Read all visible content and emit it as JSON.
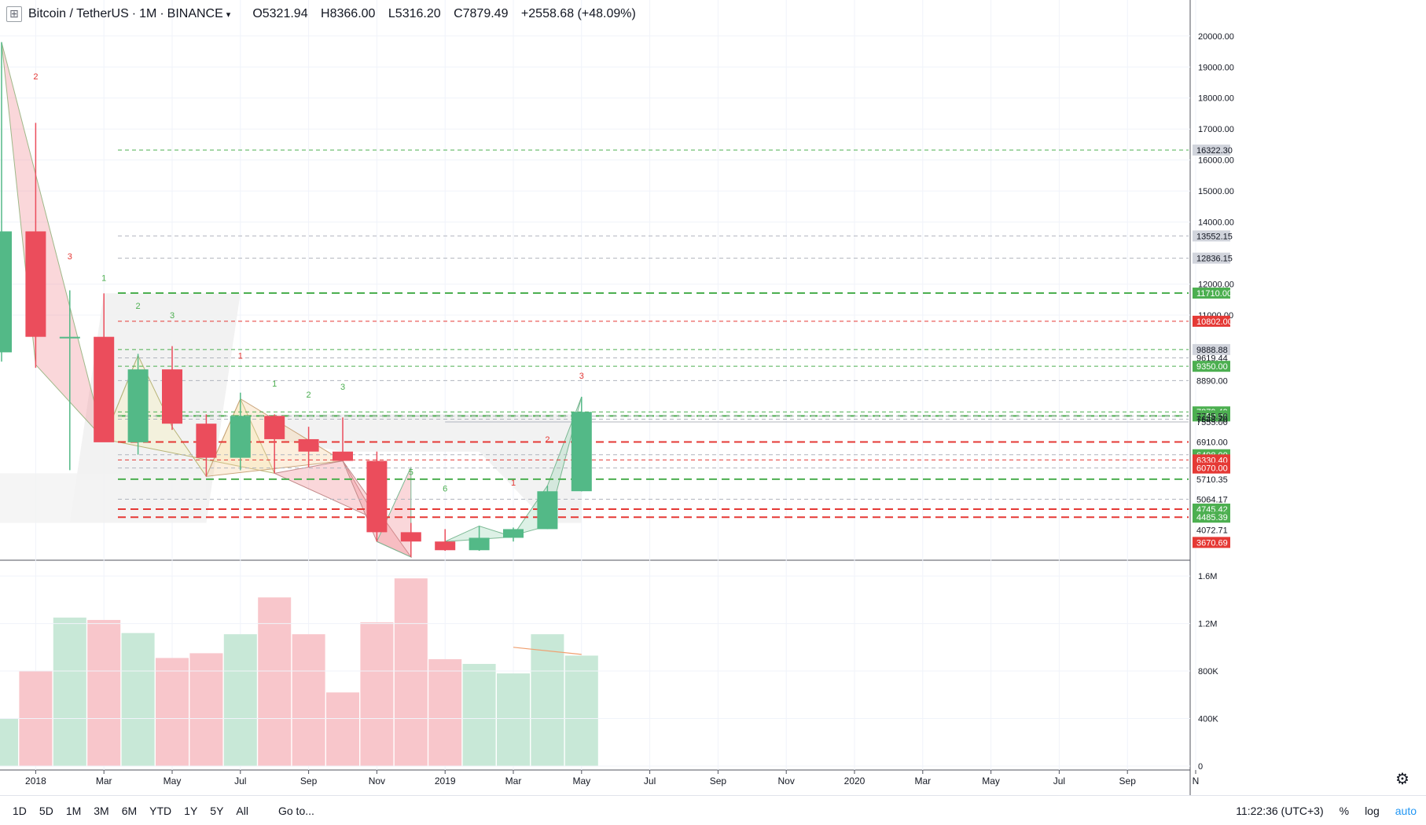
{
  "header": {
    "symbol": "Bitcoin / TetherUS",
    "interval": "1M",
    "exchange": "BINANCE",
    "open": "O5321.94",
    "high": "H8366.00",
    "low": "L5316.20",
    "close": "C7879.49",
    "change": "+2558.68 (+48.09%)"
  },
  "colors": {
    "up": "#53b987",
    "down": "#eb4d5c",
    "up_volume": "#c8e8d7",
    "down_volume": "#f8c6cb",
    "level_green": "#4caf50",
    "level_red": "#e53935",
    "level_gray": "#b0b4bd"
  },
  "chart_data": {
    "type": "candlestick",
    "interval": "1M",
    "price_axis": {
      "range": [
        3300,
        20400
      ],
      "ticks": [
        "20000.00",
        "19000.00",
        "18000.00",
        "17000.00",
        "16000.00",
        "15000.00",
        "14000.00",
        "12000.00",
        "11000.00"
      ]
    },
    "volume_axis": {
      "range": [
        0,
        1700000
      ],
      "ticks": [
        {
          "v": 1600000,
          "label": "1.6M"
        },
        {
          "v": 1200000,
          "label": "1.2M"
        },
        {
          "v": 800000,
          "label": "800K"
        },
        {
          "v": 400000,
          "label": "400K"
        },
        {
          "v": 0,
          "label": "0"
        }
      ]
    },
    "candles": [
      {
        "date": "2017-12",
        "open": 9800,
        "high": 19800,
        "low": 9500,
        "close": 13700,
        "volume": 400000
      },
      {
        "date": "2018-01",
        "open": 13700,
        "high": 17200,
        "low": 9300,
        "close": 10300,
        "volume": 800000
      },
      {
        "date": "2018-02",
        "open": 10300,
        "high": 11800,
        "low": 6000,
        "close": 10300,
        "volume": 1250000
      },
      {
        "date": "2018-03",
        "open": 10300,
        "high": 11700,
        "low": 7000,
        "close": 6900,
        "volume": 1230000
      },
      {
        "date": "2018-04",
        "open": 6900,
        "high": 9750,
        "low": 6500,
        "close": 9250,
        "volume": 1120000
      },
      {
        "date": "2018-05",
        "open": 9250,
        "high": 10000,
        "low": 7300,
        "close": 7500,
        "volume": 910000
      },
      {
        "date": "2018-06",
        "open": 7500,
        "high": 7800,
        "low": 5800,
        "close": 6400,
        "volume": 950000
      },
      {
        "date": "2018-07",
        "open": 6400,
        "high": 8500,
        "low": 6000,
        "close": 7750,
        "volume": 1110000
      },
      {
        "date": "2018-08",
        "open": 7750,
        "high": 7800,
        "low": 5900,
        "close": 7000,
        "volume": 1420000
      },
      {
        "date": "2018-09",
        "open": 7000,
        "high": 7400,
        "low": 6100,
        "close": 6600,
        "volume": 1110000
      },
      {
        "date": "2018-10",
        "open": 6600,
        "high": 7700,
        "low": 6300,
        "close": 6300,
        "volume": 620000
      },
      {
        "date": "2018-11",
        "open": 6300,
        "high": 6600,
        "low": 3700,
        "close": 4000,
        "volume": 1210000
      },
      {
        "date": "2018-12",
        "open": 4000,
        "high": 4300,
        "low": 3200,
        "close": 3700,
        "volume": 1580000
      },
      {
        "date": "2019-01",
        "open": 3700,
        "high": 4100,
        "low": 3400,
        "close": 3420,
        "volume": 900000
      },
      {
        "date": "2019-02",
        "open": 3420,
        "high": 4200,
        "low": 3400,
        "close": 3820,
        "volume": 860000
      },
      {
        "date": "2019-03",
        "open": 3820,
        "high": 4150,
        "low": 3700,
        "close": 4100,
        "volume": 780000
      },
      {
        "date": "2019-04",
        "open": 4100,
        "high": 5500,
        "low": 4100,
        "close": 5320,
        "volume": 1110000
      },
      {
        "date": "2019-05",
        "open": 5321.94,
        "high": 8366,
        "low": 5316.2,
        "close": 7879.49,
        "volume": 930000
      }
    ],
    "levels": [
      {
        "price": 16322.3,
        "label": "16322.30",
        "color": "green",
        "style": "dashed",
        "badge": "gray"
      },
      {
        "price": 13552.15,
        "label": "13552.15",
        "color": "gray",
        "style": "dashed",
        "badge": "gray"
      },
      {
        "price": 12836.15,
        "label": "12836.15",
        "color": "gray",
        "style": "dashed",
        "badge": "gray"
      },
      {
        "price": 11710.0,
        "label": "11710.00",
        "color": "green",
        "style": "bold-dashed",
        "badge": "green"
      },
      {
        "price": 10802.0,
        "label": "10802.00",
        "color": "red",
        "style": "dashed",
        "badge": "red"
      },
      {
        "price": 9888.88,
        "label": "9888.88",
        "color": "green",
        "style": "dashed",
        "badge": "gray"
      },
      {
        "price": 9619.44,
        "label": "9619.44",
        "color": "gray",
        "style": "dashed",
        "badge": "none"
      },
      {
        "price": 9350.0,
        "label": "9350.00",
        "color": "green",
        "style": "dashed",
        "badge": "green"
      },
      {
        "price": 8890.0,
        "label": "8890.00",
        "color": "gray",
        "style": "dashed",
        "badge": "none"
      },
      {
        "price": 7879.49,
        "label": "7879.49",
        "color": "green",
        "style": "dashed",
        "badge": "green"
      },
      {
        "price": 7750.0,
        "label": "7750.00",
        "color": "green",
        "style": "bold-dashed",
        "badge": "green"
      },
      {
        "price": 7745.5,
        "label": "7745.50",
        "color": "gray",
        "style": "dashed",
        "badge": "none"
      },
      {
        "price": 7643.7,
        "label": "7643.70",
        "color": "gray",
        "style": "dashed",
        "badge": "none"
      },
      {
        "price": 7555.0,
        "label": "7555.00",
        "color": "gray",
        "style": "solid",
        "badge": "none"
      },
      {
        "price": 6910.0,
        "label": "6910.00",
        "color": "red",
        "style": "bold-dashed",
        "badge": "none"
      },
      {
        "price": 6498.0,
        "label": "6498.00",
        "color": "gray",
        "style": "dashed",
        "badge": "green"
      },
      {
        "price": 6330.4,
        "label": "6330.40",
        "color": "red",
        "style": "dashed",
        "badge": "red"
      },
      {
        "price": 6070.0,
        "label": "6070.00",
        "color": "gray",
        "style": "dashed",
        "badge": "red"
      },
      {
        "price": 5710.35,
        "label": "5710.35",
        "color": "green",
        "style": "bold-dashed",
        "badge": "none"
      },
      {
        "price": 5064.17,
        "label": "5064.17",
        "color": "gray",
        "style": "dashed",
        "badge": "none"
      },
      {
        "price": 4745.42,
        "label": "4745.42",
        "color": "red",
        "style": "bold-dashed",
        "badge": "green"
      },
      {
        "price": 4485.39,
        "label": "4485.39",
        "color": "red",
        "style": "bold-dashed",
        "badge": "green"
      },
      {
        "price": 4072.71,
        "label": "4072.71",
        "color": "gray",
        "style": "none",
        "badge": "none"
      },
      {
        "price": 3670.69,
        "label": "3670.69",
        "color": "red",
        "style": "none",
        "badge": "red"
      }
    ],
    "sequence_labels": [
      {
        "date": "2018-01",
        "text": "2",
        "color": "red",
        "price": 18600
      },
      {
        "date": "2018-02",
        "text": "3",
        "color": "red",
        "price": 12800
      },
      {
        "date": "2018-03",
        "text": "1",
        "color": "green",
        "price": 12100
      },
      {
        "date": "2018-04",
        "text": "2",
        "color": "green",
        "price": 11200
      },
      {
        "date": "2018-05",
        "text": "3",
        "color": "green",
        "price": 10900
      },
      {
        "date": "2018-07",
        "text": "1",
        "color": "red",
        "price": 9600
      },
      {
        "date": "2018-08",
        "text": "1",
        "color": "green",
        "price": 8700
      },
      {
        "date": "2018-09",
        "text": "2",
        "color": "green",
        "price": 8340
      },
      {
        "date": "2018-10",
        "text": "3",
        "color": "green",
        "price": 8600
      },
      {
        "date": "2018-12",
        "text": "5",
        "color": "green",
        "price": 5840
      },
      {
        "date": "2019-01",
        "text": "6",
        "color": "green",
        "price": 5320
      },
      {
        "date": "2019-03",
        "text": "1",
        "color": "red",
        "price": 5500
      },
      {
        "date": "2019-04",
        "text": "2",
        "color": "red",
        "price": 6900
      },
      {
        "date": "2019-05",
        "text": "3",
        "color": "red",
        "price": 8950
      }
    ],
    "time_axis": [
      "2018",
      "Mar",
      "May",
      "Jul",
      "Sep",
      "Nov",
      "2019",
      "Mar",
      "May",
      "Jul",
      "Sep",
      "Nov",
      "2020",
      "Mar",
      "May",
      "Jul",
      "Sep",
      "N"
    ],
    "grid": true
  },
  "bottom_bar": {
    "ranges": [
      "1D",
      "5D",
      "1M",
      "3M",
      "6M",
      "YTD",
      "1Y",
      "5Y",
      "All"
    ],
    "goto": "Go to...",
    "time": "11:22:36 (UTC+3)",
    "percent": "%",
    "log": "log",
    "auto": "auto"
  }
}
